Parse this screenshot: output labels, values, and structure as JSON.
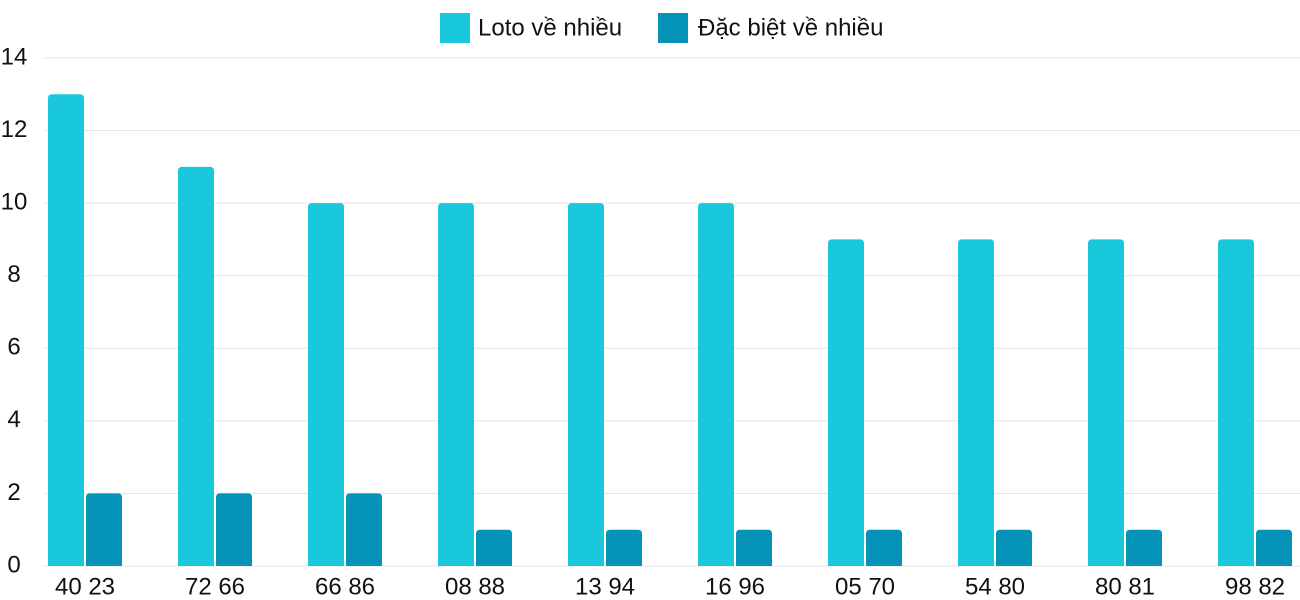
{
  "chart_data": {
    "type": "bar",
    "categories": [
      "40 23",
      "72 66",
      "66 86",
      "08 88",
      "13 94",
      "16 96",
      "05 70",
      "54 80",
      "80 81",
      "98 82"
    ],
    "series": [
      {
        "name": "Loto về nhiều",
        "color": "#1ac8db",
        "values": [
          13,
          11,
          10,
          10,
          10,
          10,
          9,
          9,
          9,
          9
        ]
      },
      {
        "name": "Đặc biệt về nhiều",
        "color": "#0593b8",
        "values": [
          2,
          2,
          2,
          1,
          1,
          1,
          1,
          1,
          1,
          1
        ]
      }
    ],
    "ylim": [
      0,
      14
    ],
    "yticks": [
      0,
      2,
      4,
      6,
      8,
      10,
      12,
      14
    ],
    "grid": true,
    "legend": "top"
  }
}
